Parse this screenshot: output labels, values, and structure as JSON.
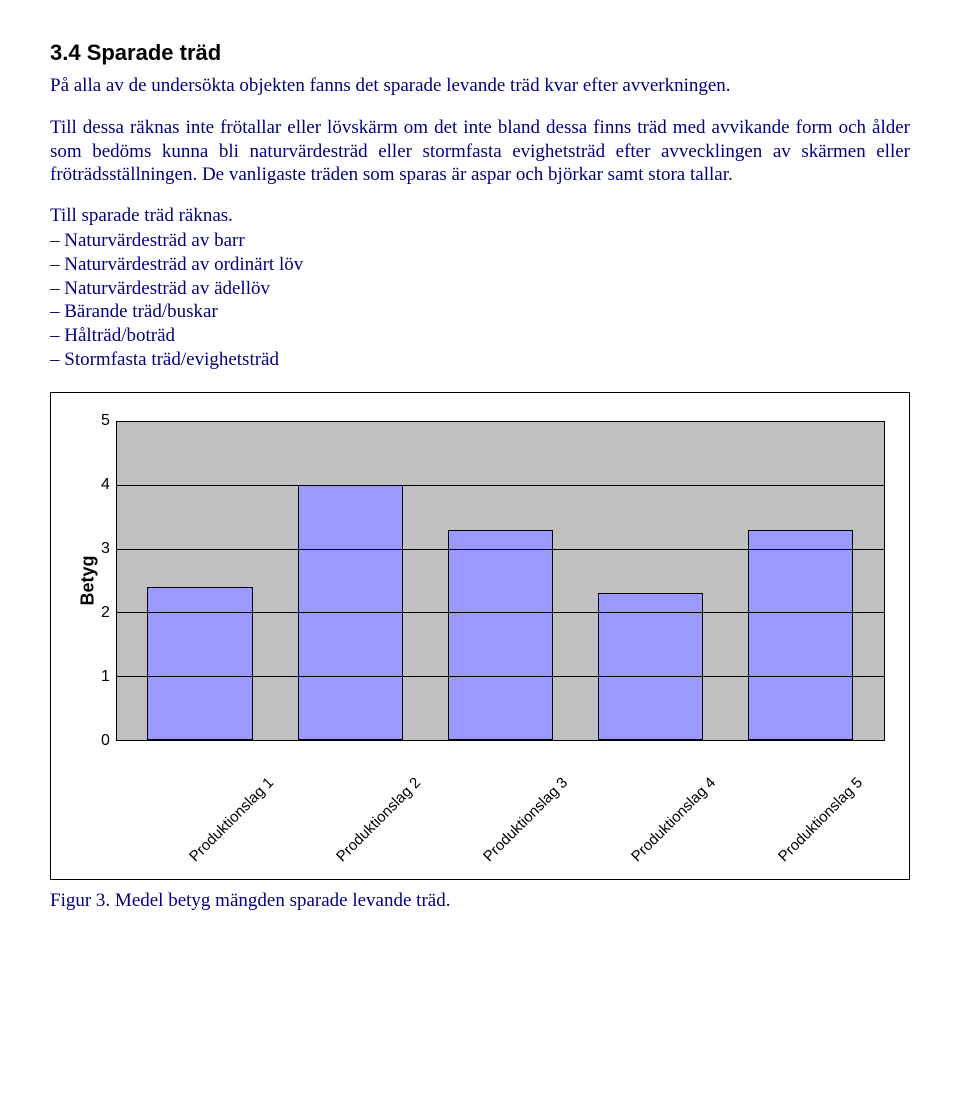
{
  "heading": "3.4 Sparade träd",
  "para1": "På alla av de undersökta objekten fanns det sparade levande träd kvar efter avverkningen.",
  "para2": "Till dessa räknas inte frötallar eller lövskärm om det inte bland dessa finns träd med avvikande form och ålder som bedöms kunna bli naturvärdesträd eller stormfasta evighetsträd efter avvecklingen av skärmen eller fröträdsställningen. De vanligaste träden som sparas är aspar och björkar samt stora tallar.",
  "para3": "Till sparade träd räknas.",
  "list": [
    "Naturvärdesträd av barr",
    "Naturvärdesträd av ordinärt löv",
    "Naturvärdesträd av ädellöv",
    "Bärande träd/buskar",
    "Hålträd/boträd",
    "Stormfasta träd/evighetsträd"
  ],
  "chart": {
    "type": "bar",
    "ylabel": "Betyg",
    "ylim": [
      0,
      5
    ],
    "yticks": [
      5,
      4,
      3,
      2,
      1,
      0
    ],
    "categories": [
      "Produktionslag 1",
      "Produktionslag 2",
      "Produktionslag 3",
      "Produktionslag 4",
      "Produktionslag 5"
    ],
    "values": [
      2.4,
      4.0,
      3.3,
      2.3,
      3.3
    ],
    "bar_color": "#9999ff",
    "bar_border": "#000000",
    "plot_bg": "#c0c0c0",
    "grid_color": "#000000",
    "bar_width_pct": 14,
    "font_family": "Arial",
    "ytick_fontsize": 16,
    "ylabel_fontsize": 18,
    "xlabel_fontsize": 15,
    "xlabel_rotation_deg": -45
  },
  "caption": "Figur 3. Medel betyg mängden sparade levande träd."
}
